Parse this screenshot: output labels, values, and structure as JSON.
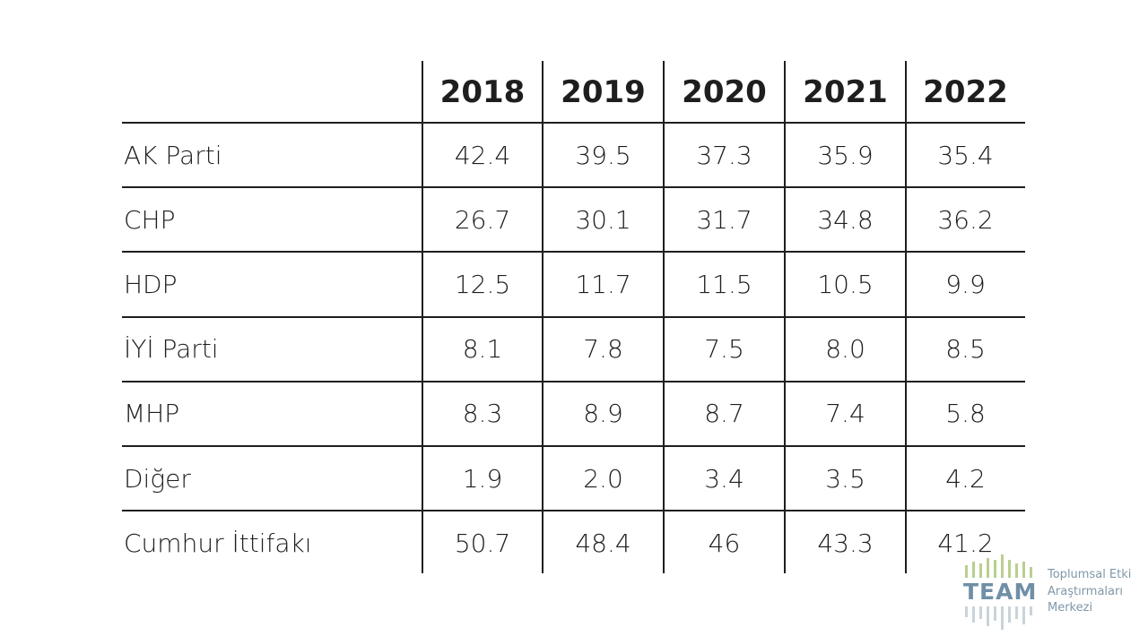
{
  "table": {
    "columns": [
      "2018",
      "2019",
      "2020",
      "2021",
      "2022"
    ],
    "rows": [
      {
        "label": "AK Parti",
        "values": [
          "42.4",
          "39.5",
          "37.3",
          "35.9",
          "35.4"
        ]
      },
      {
        "label": "CHP",
        "values": [
          "26.7",
          "30.1",
          "31.7",
          "34.8",
          "36.2"
        ]
      },
      {
        "label": "HDP",
        "values": [
          "12.5",
          "11.7",
          "11.5",
          "10.5",
          "9.9"
        ]
      },
      {
        "label": "İYİ Parti",
        "values": [
          "8.1",
          "7.8",
          "7.5",
          "8.0",
          "8.5"
        ]
      },
      {
        "label": "MHP",
        "values": [
          "8.3",
          "8.9",
          "8.7",
          "7.4",
          "5.8"
        ]
      },
      {
        "label": "Diğer",
        "values": [
          "1.9",
          "2.0",
          "3.4",
          "3.5",
          "4.2"
        ]
      },
      {
        "label": "Cumhur İttifakı",
        "values": [
          "50.7",
          "48.4",
          "46",
          "43.3",
          "41.2"
        ]
      }
    ]
  },
  "logo": {
    "name": "TEAM",
    "lines": [
      "Toplumsal Etki",
      "Araştırmaları",
      "Merkezi"
    ]
  }
}
